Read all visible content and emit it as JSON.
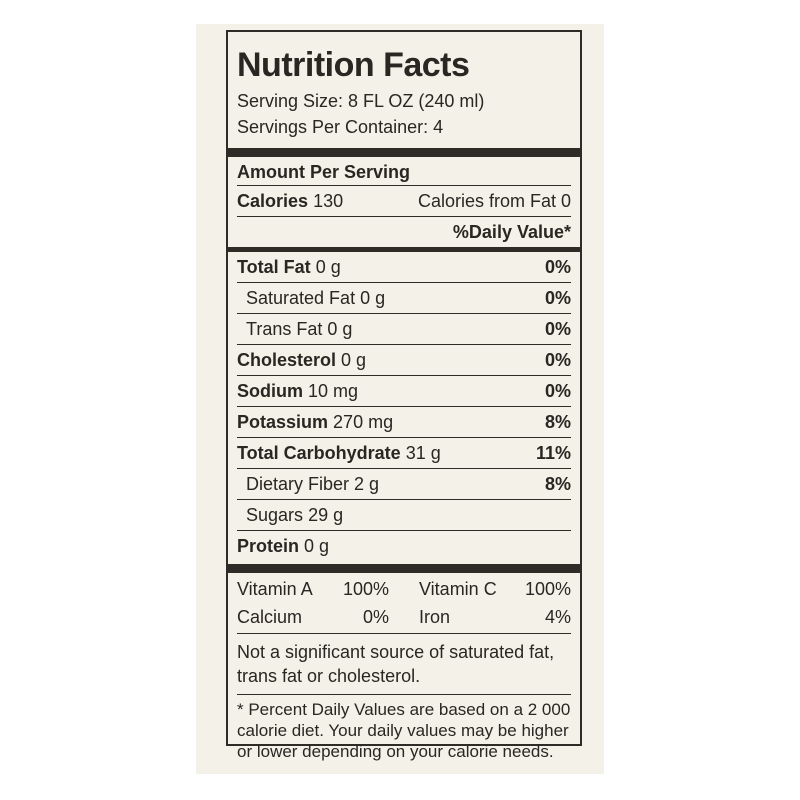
{
  "label": {
    "title": "Nutrition Facts",
    "serving_size": "Serving Size: 8 FL OZ (240 ml)",
    "servings_per_container": "Servings Per Container: 4",
    "amount_per_serving": "Amount Per Serving",
    "calories_label": "Calories",
    "calories_value": "130",
    "calories_from_fat": "Calories from Fat 0",
    "daily_value_header": "%Daily Value*",
    "nutrients": [
      {
        "name": "Total Fat",
        "amount": "0 g",
        "dv": "0%"
      },
      {
        "name": "Saturated Fat",
        "amount": "0 g",
        "dv": "0%"
      },
      {
        "name": "Trans Fat",
        "amount": "0 g",
        "dv": "0%"
      },
      {
        "name": "Cholesterol",
        "amount": "0 g",
        "dv": "0%"
      },
      {
        "name": "Sodium",
        "amount": "10 mg",
        "dv": "0%"
      },
      {
        "name": "Potassium",
        "amount": "270 mg",
        "dv": "8%"
      },
      {
        "name": "Total Carbohydrate",
        "amount": "31 g",
        "dv": "11%"
      },
      {
        "name": "Dietary Fiber",
        "amount": "2 g",
        "dv": "8%"
      },
      {
        "name": "Sugars",
        "amount": "29 g",
        "dv": ""
      },
      {
        "name": "Protein",
        "amount": "0 g",
        "dv": ""
      }
    ],
    "vitamins": [
      {
        "name": "Vitamin A",
        "dv": "100%"
      },
      {
        "name": "Vitamin C",
        "dv": "100%"
      },
      {
        "name": "Calcium",
        "dv": "0%"
      },
      {
        "name": "Iron",
        "dv": "4%"
      }
    ],
    "note": "Not a significant source of saturated fat, trans fat or cholesterol.",
    "footnote": "* Percent Daily Values are based on a 2 000 calorie diet. Your daily values may be higher or lower depending on your calorie needs."
  }
}
